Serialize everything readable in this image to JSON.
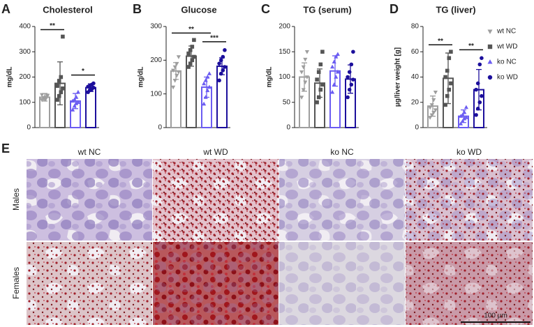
{
  "chart_data": [
    {
      "type": "bar",
      "label": "A",
      "title": "Cholesterol",
      "ylabel": "mg/dL",
      "ylim": [
        0,
        400
      ],
      "yticks": [
        0,
        100,
        200,
        300,
        400
      ],
      "series": [
        {
          "name": "wt NC",
          "color": "#9e9e9e",
          "marker": "triangle-down",
          "mean": 120,
          "error": 15,
          "values": [
            110,
            115,
            120,
            125,
            130,
            118,
            112,
            128
          ]
        },
        {
          "name": "wt WD",
          "color": "#555555",
          "marker": "square",
          "mean": 175,
          "error": 85,
          "values": [
            110,
            125,
            140,
            155,
            165,
            185,
            200,
            360
          ]
        },
        {
          "name": "ko NC",
          "color": "#6b5cf2",
          "marker": "triangle-up",
          "mean": 105,
          "error": 30,
          "values": [
            70,
            85,
            95,
            100,
            105,
            110,
            120,
            140
          ]
        },
        {
          "name": "ko WD",
          "color": "#1c0f9c",
          "marker": "circle",
          "mean": 158,
          "error": 15,
          "values": [
            140,
            148,
            152,
            158,
            162,
            165,
            170,
            175
          ]
        }
      ],
      "significance": [
        {
          "from": 0,
          "to": 1,
          "label": "**"
        },
        {
          "from": 2,
          "to": 3,
          "label": "*"
        }
      ]
    },
    {
      "type": "bar",
      "label": "B",
      "title": "Glucose",
      "ylabel": "mg/dL",
      "ylim": [
        0,
        300
      ],
      "yticks": [
        0,
        100,
        200,
        300
      ],
      "series": [
        {
          "name": "wt NC",
          "color": "#9e9e9e",
          "marker": "triangle-down",
          "mean": 168,
          "error": 25,
          "values": [
            120,
            140,
            155,
            165,
            170,
            180,
            190,
            210
          ]
        },
        {
          "name": "wt WD",
          "color": "#555555",
          "marker": "square",
          "mean": 212,
          "error": 30,
          "values": [
            180,
            190,
            200,
            210,
            220,
            230,
            240,
            260
          ]
        },
        {
          "name": "ko NC",
          "color": "#6b5cf2",
          "marker": "triangle-up",
          "mean": 120,
          "error": 30,
          "values": [
            70,
            90,
            110,
            120,
            130,
            140,
            150,
            160
          ]
        },
        {
          "name": "ko WD",
          "color": "#1c0f9c",
          "marker": "circle",
          "mean": 182,
          "error": 25,
          "values": [
            140,
            160,
            170,
            180,
            190,
            200,
            210,
            230
          ]
        }
      ],
      "significance": [
        {
          "from": 0,
          "to": 2,
          "label": "**"
        },
        {
          "from": 2,
          "to": 3,
          "label": "***"
        }
      ]
    },
    {
      "type": "bar",
      "label": "C",
      "title": "TG (serum)",
      "ylabel": "mg/dL",
      "ylim": [
        0,
        200
      ],
      "yticks": [
        0,
        50,
        100,
        150,
        200
      ],
      "series": [
        {
          "name": "wt NC",
          "color": "#9e9e9e",
          "marker": "triangle-down",
          "mean": 100,
          "error": 28,
          "values": [
            60,
            75,
            90,
            100,
            110,
            120,
            135,
            150
          ]
        },
        {
          "name": "wt WD",
          "color": "#555555",
          "marker": "square",
          "mean": 88,
          "error": 28,
          "values": [
            50,
            60,
            75,
            85,
            95,
            110,
            125,
            150
          ]
        },
        {
          "name": "ko NC",
          "color": "#6b5cf2",
          "marker": "triangle-up",
          "mean": 112,
          "error": 30,
          "values": [
            70,
            85,
            100,
            110,
            120,
            130,
            140,
            145
          ]
        },
        {
          "name": "ko WD",
          "color": "#1c0f9c",
          "marker": "circle",
          "mean": 96,
          "error": 28,
          "values": [
            60,
            75,
            85,
            95,
            100,
            110,
            125,
            150
          ]
        }
      ],
      "significance": []
    },
    {
      "type": "bar",
      "label": "D",
      "title": "TG (liver)",
      "ylabel": "µg/liver weight [g]",
      "ylim": [
        0,
        80
      ],
      "yticks": [
        0,
        20,
        40,
        60,
        80
      ],
      "legend": "right",
      "series": [
        {
          "name": "wt NC",
          "color": "#9e9e9e",
          "marker": "triangle-down",
          "mean": 17,
          "error": 8,
          "values": [
            8,
            10,
            12,
            14,
            16,
            18,
            22,
            28
          ]
        },
        {
          "name": "wt WD",
          "color": "#555555",
          "marker": "square",
          "mean": 39,
          "error": 20,
          "values": [
            18,
            25,
            30,
            35,
            40,
            45,
            55,
            60
          ]
        },
        {
          "name": "ko NC",
          "color": "#6b5cf2",
          "marker": "triangle-up",
          "mean": 9,
          "error": 5,
          "values": [
            3,
            5,
            7,
            8,
            9,
            10,
            12,
            16
          ]
        },
        {
          "name": "ko WD",
          "color": "#1c0f9c",
          "marker": "circle",
          "mean": 30,
          "error": 16,
          "values": [
            10,
            15,
            20,
            25,
            30,
            35,
            50,
            55
          ]
        }
      ],
      "significance": [
        {
          "from": 0,
          "to": 1,
          "label": "**"
        },
        {
          "from": 2,
          "to": 3,
          "label": "**"
        }
      ]
    }
  ],
  "histology": {
    "label": "E",
    "columns": [
      "wt NC",
      "wt WD",
      "ko NC",
      "ko WD"
    ],
    "rows": [
      "Males",
      "Females"
    ],
    "scale_bar": "100 µm"
  }
}
